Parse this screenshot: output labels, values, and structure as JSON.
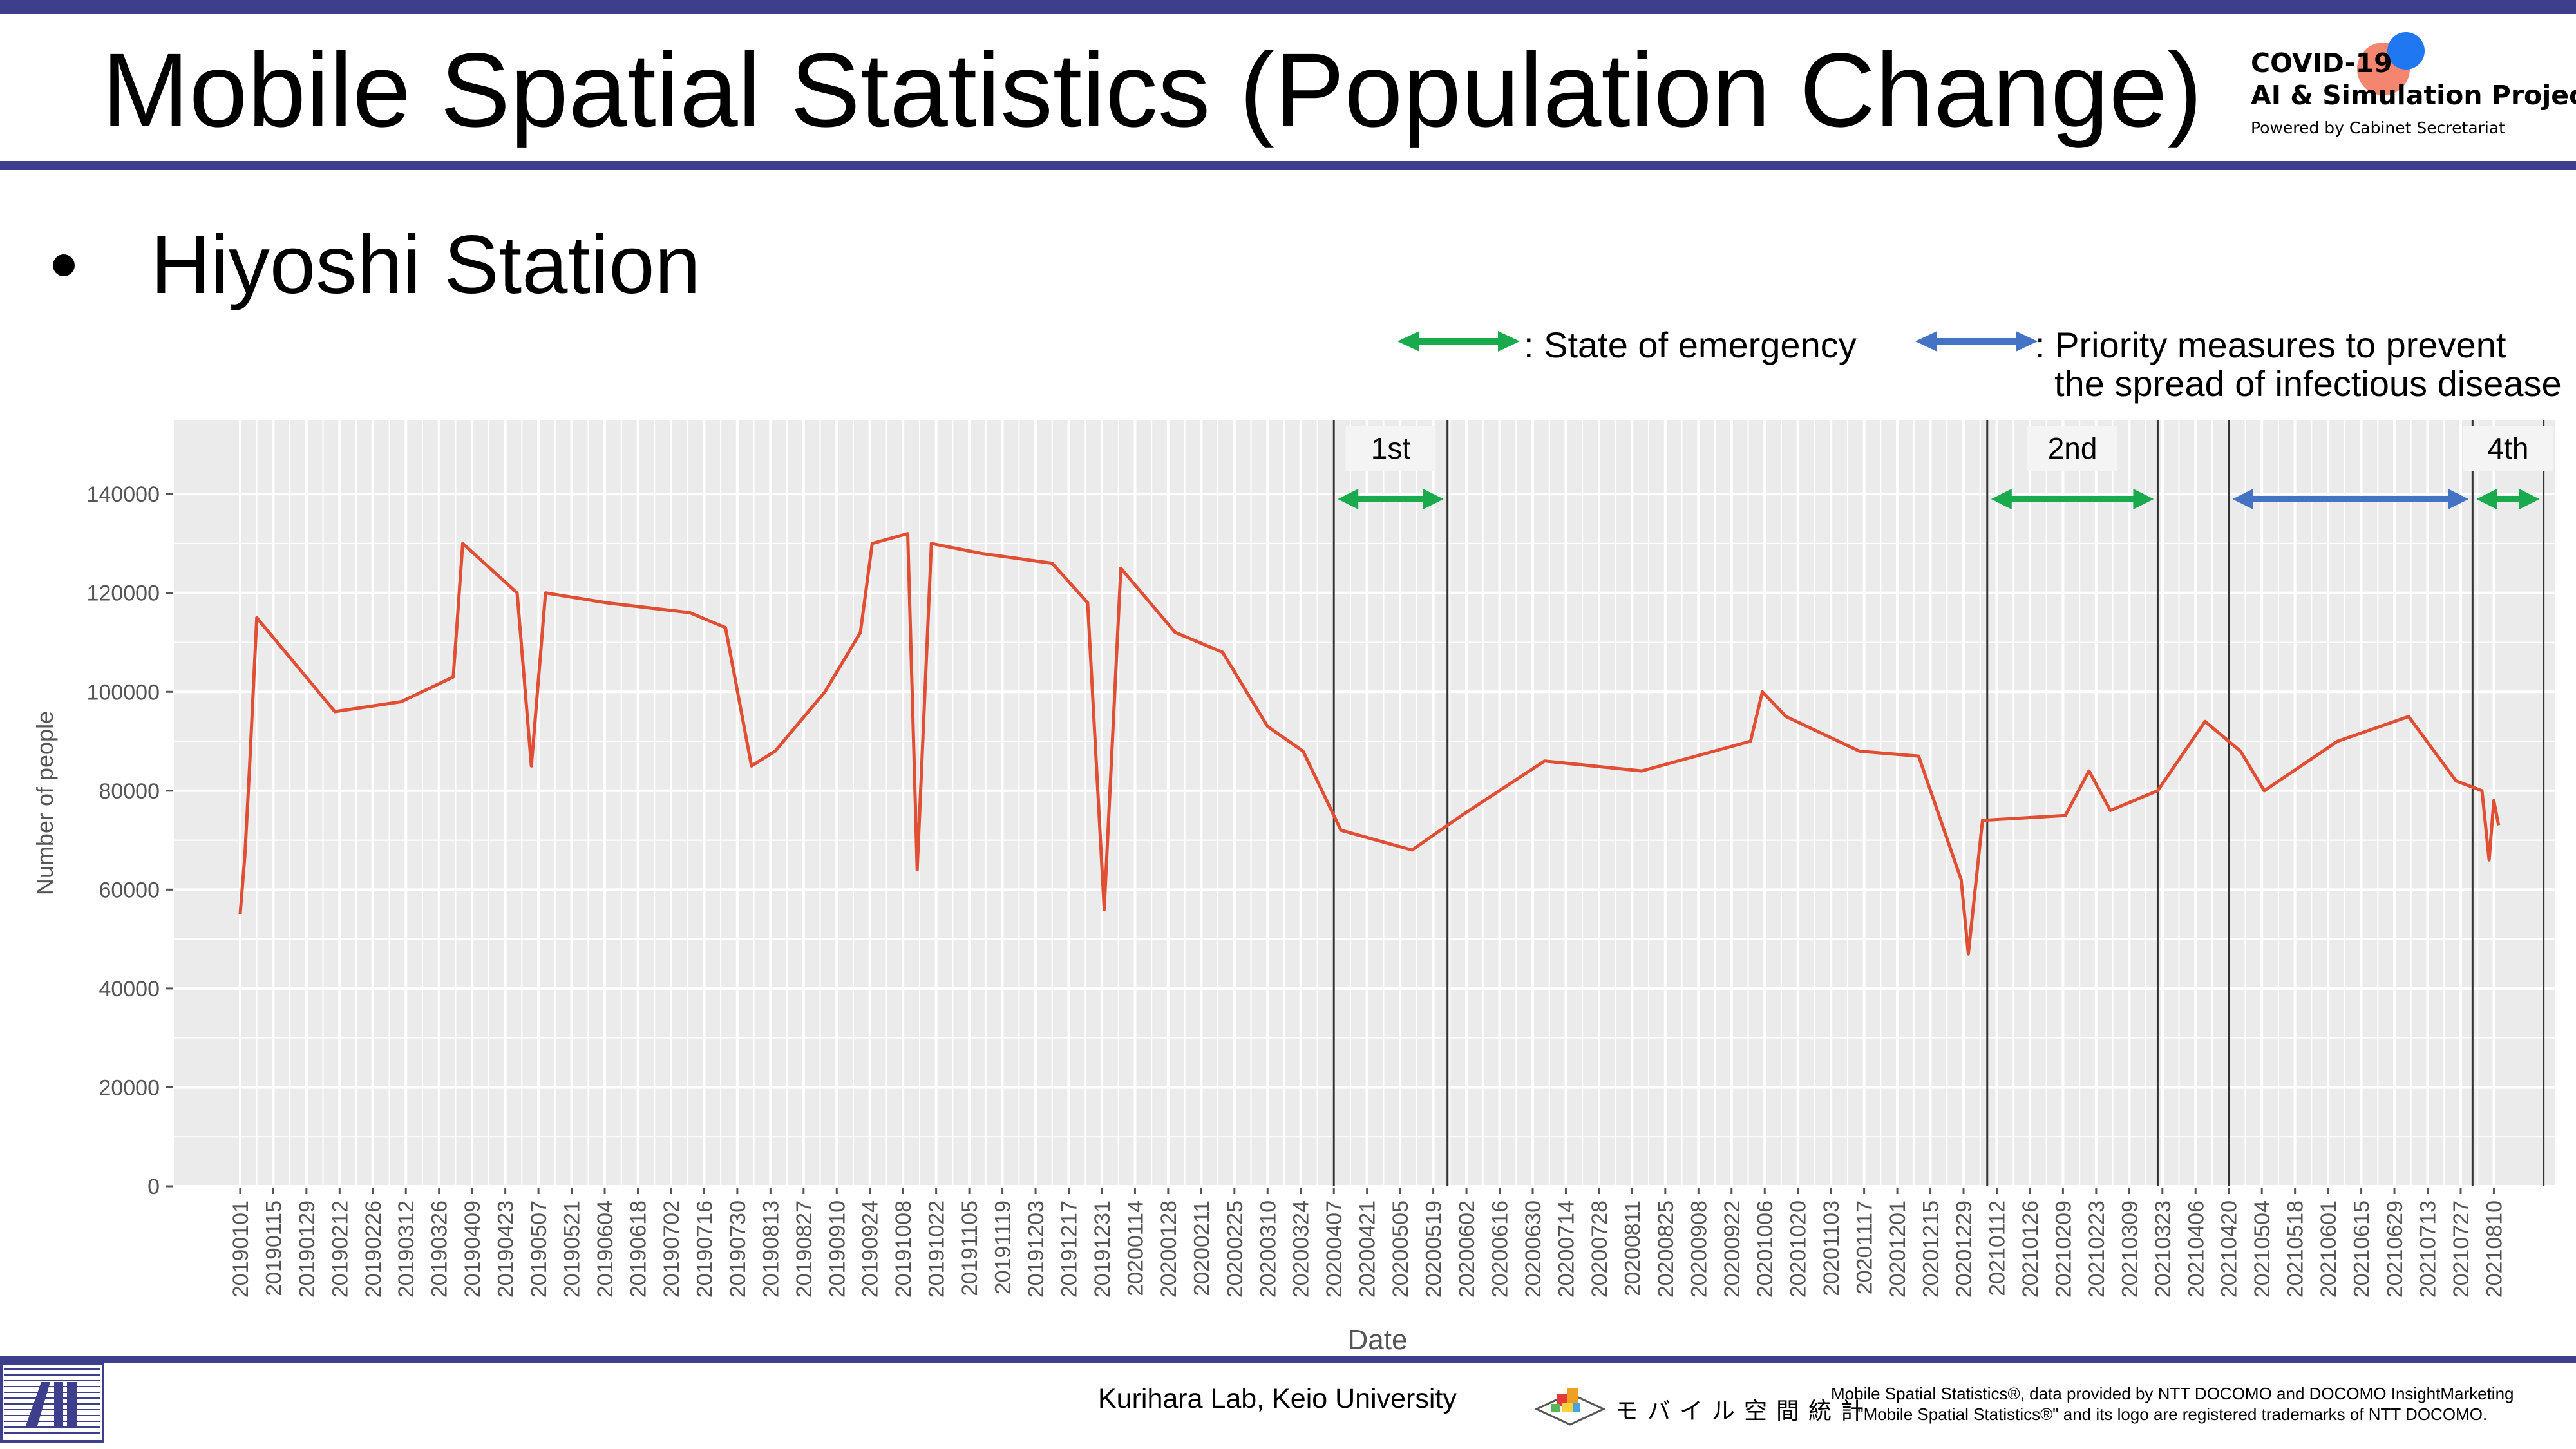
{
  "header": {
    "title": "Mobile Spatial Statistics (Population Change)",
    "badge": {
      "line1": "COVID-19",
      "line2": "AI & Simulation Project",
      "line3": "Powered by Cabinet Secretariat"
    }
  },
  "subtitle": "Hiyoshi Station",
  "legend": {
    "emergency_text": ": State of emergency",
    "priority_text_line1": ": Priority measures to prevent",
    "priority_text_line2": "the spread of infectious disease"
  },
  "colors": {
    "brand_navy": "#3e3f8c",
    "line": "#e04e34",
    "emergency": "#1aaa4e",
    "priority": "#4472c4",
    "panel": "#ebebeb",
    "badge_red": "#f26a4f",
    "badge_blue": "#1f77f2"
  },
  "chart_data": {
    "type": "line",
    "title": "",
    "xlabel": "Date",
    "ylabel": "Number of people",
    "ylim": [
      0,
      155000
    ],
    "xlim": [
      "2018-12-04",
      "2021-09-05"
    ],
    "grid": true,
    "y_ticks": [
      "0",
      "20000",
      "40000",
      "60000",
      "80000",
      "100000",
      "120000",
      "140000"
    ],
    "x_ticks": [
      "20190101",
      "20190115",
      "20190129",
      "20190212",
      "20190226",
      "20190312",
      "20190326",
      "20190409",
      "20190423",
      "20190507",
      "20190521",
      "20190604",
      "20190618",
      "20190702",
      "20190716",
      "20190730",
      "20190813",
      "20190827",
      "20190910",
      "20190924",
      "20191008",
      "20191022",
      "20191105",
      "20191119",
      "20191203",
      "20191217",
      "20191231",
      "20200114",
      "20200128",
      "20200211",
      "20200225",
      "20200310",
      "20200324",
      "20200407",
      "20200421",
      "20200505",
      "20200519",
      "20200602",
      "20200616",
      "20200630",
      "20200714",
      "20200728",
      "20200811",
      "20200825",
      "20200908",
      "20200922",
      "20201006",
      "20201020",
      "20201103",
      "20201117",
      "20201201",
      "20201215",
      "20201229",
      "20210112",
      "20210126",
      "20210209",
      "20210223",
      "20210309",
      "20210323",
      "20210406",
      "20210420",
      "20210504",
      "20210518",
      "20210601",
      "20210615",
      "20210629",
      "20210713",
      "20210727",
      "20210810"
    ],
    "series": [
      {
        "values": [
          {
            "x": "2019-01-01",
            "y": 55000
          },
          {
            "x": "2019-01-03",
            "y": 67000
          },
          {
            "x": "2019-01-05",
            "y": 85000
          },
          {
            "x": "2019-01-08",
            "y": 115000
          },
          {
            "x": "2019-02-10",
            "y": 96000
          },
          {
            "x": "2019-03-10",
            "y": 98000
          },
          {
            "x": "2019-04-01",
            "y": 103000
          },
          {
            "x": "2019-04-05",
            "y": 130000
          },
          {
            "x": "2019-04-28",
            "y": 120000
          },
          {
            "x": "2019-05-04",
            "y": 85000
          },
          {
            "x": "2019-05-10",
            "y": 120000
          },
          {
            "x": "2019-06-05",
            "y": 118000
          },
          {
            "x": "2019-07-10",
            "y": 116000
          },
          {
            "x": "2019-07-25",
            "y": 113000
          },
          {
            "x": "2019-08-05",
            "y": 85000
          },
          {
            "x": "2019-08-15",
            "y": 88000
          },
          {
            "x": "2019-09-05",
            "y": 100000
          },
          {
            "x": "2019-09-20",
            "y": 112000
          },
          {
            "x": "2019-09-25",
            "y": 130000
          },
          {
            "x": "2019-10-10",
            "y": 132000
          },
          {
            "x": "2019-10-14",
            "y": 64000
          },
          {
            "x": "2019-10-20",
            "y": 130000
          },
          {
            "x": "2019-11-10",
            "y": 128000
          },
          {
            "x": "2019-12-10",
            "y": 126000
          },
          {
            "x": "2019-12-25",
            "y": 118000
          },
          {
            "x": "2020-01-01",
            "y": 56000
          },
          {
            "x": "2020-01-08",
            "y": 125000
          },
          {
            "x": "2020-01-31",
            "y": 112000
          },
          {
            "x": "2020-02-20",
            "y": 108000
          },
          {
            "x": "2020-03-10",
            "y": 93000
          },
          {
            "x": "2020-03-25",
            "y": 88000
          },
          {
            "x": "2020-04-10",
            "y": 72000
          },
          {
            "x": "2020-05-10",
            "y": 68000
          },
          {
            "x": "2020-05-31",
            "y": 75000
          },
          {
            "x": "2020-07-05",
            "y": 86000
          },
          {
            "x": "2020-08-15",
            "y": 84000
          },
          {
            "x": "2020-09-30",
            "y": 90000
          },
          {
            "x": "2020-10-05",
            "y": 100000
          },
          {
            "x": "2020-10-15",
            "y": 95000
          },
          {
            "x": "2020-11-15",
            "y": 88000
          },
          {
            "x": "2020-12-10",
            "y": 87000
          },
          {
            "x": "2020-12-28",
            "y": 62000
          },
          {
            "x": "2020-12-31",
            "y": 47000
          },
          {
            "x": "2021-01-06",
            "y": 74000
          },
          {
            "x": "2021-02-10",
            "y": 75000
          },
          {
            "x": "2021-02-20",
            "y": 84000
          },
          {
            "x": "2021-03-01",
            "y": 76000
          },
          {
            "x": "2021-03-21",
            "y": 80000
          },
          {
            "x": "2021-04-10",
            "y": 94000
          },
          {
            "x": "2021-04-25",
            "y": 88000
          },
          {
            "x": "2021-05-05",
            "y": 80000
          },
          {
            "x": "2021-06-05",
            "y": 90000
          },
          {
            "x": "2021-07-05",
            "y": 95000
          },
          {
            "x": "2021-07-25",
            "y": 82000
          },
          {
            "x": "2021-08-05",
            "y": 80000
          },
          {
            "x": "2021-08-08",
            "y": 66000
          },
          {
            "x": "2021-08-10",
            "y": 78000
          },
          {
            "x": "2021-08-12",
            "y": 73000
          }
        ]
      }
    ],
    "periods": [
      {
        "label": "1st",
        "type": "emergency",
        "start": "2020-04-07",
        "end": "2020-05-25"
      },
      {
        "label": "2nd",
        "type": "emergency",
        "start": "2021-01-08",
        "end": "2021-03-21"
      },
      {
        "label": "",
        "type": "priority",
        "start": "2021-04-20",
        "end": "2021-08-01"
      },
      {
        "label": "4th",
        "type": "emergency",
        "start": "2021-08-01",
        "end": "2021-08-31"
      }
    ]
  },
  "footer": {
    "credit": "Kurihara Lab, Keio University",
    "mss_logo_text": "モバイル空間統計",
    "note_line1": "Mobile Spatial Statistics®, data provided by NTT DOCOMO and DOCOMO InsightMarketing",
    "note_line2": "\"Mobile Spatial Statistics®\" and its logo are registered trademarks of NTT DOCOMO."
  }
}
